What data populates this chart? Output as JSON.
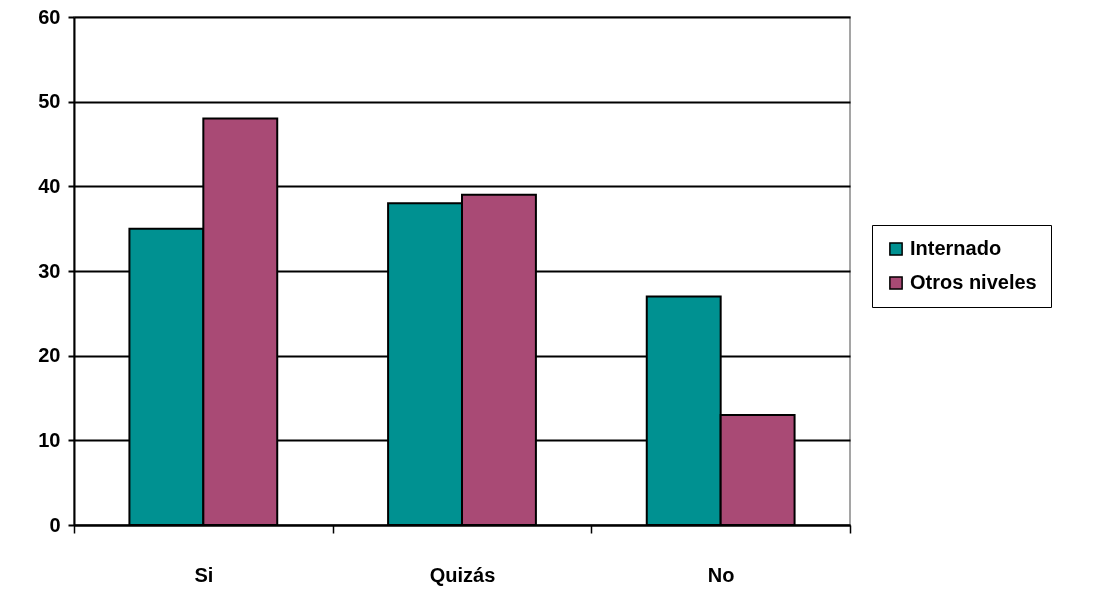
{
  "chart_data": {
    "type": "bar",
    "categories": [
      "Si",
      "Quizás",
      "No"
    ],
    "series": [
      {
        "name": "Internado",
        "color": "#009191",
        "values": [
          35,
          38,
          27
        ]
      },
      {
        "name": "Otros niveles",
        "color": "#a94a75",
        "values": [
          48,
          39,
          13
        ]
      }
    ],
    "ylim": [
      0,
      60
    ],
    "yticks": [
      0,
      10,
      20,
      30,
      40,
      50,
      60
    ],
    "grid": "y",
    "legend": "right"
  }
}
